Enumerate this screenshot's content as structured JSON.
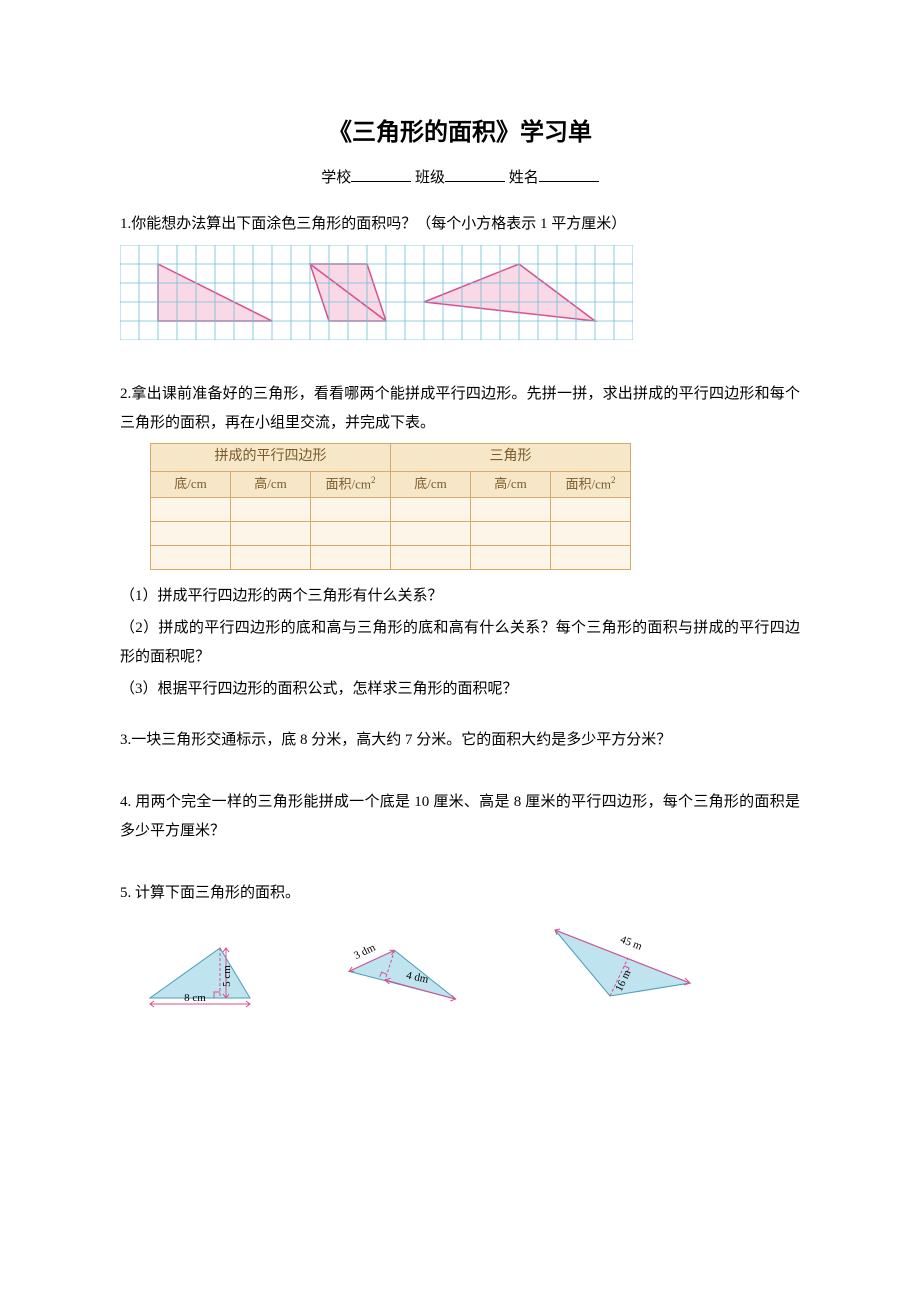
{
  "title": "《三角形的面积》学习单",
  "subtitle": {
    "school_label": "学校",
    "class_label": "班级",
    "name_label": "姓名"
  },
  "q1": {
    "text": "1.你能想办法算出下面涂色三角形的面积吗？（每个小方格表示 1 平方厘米）",
    "grid": {
      "cols": 27,
      "rows": 5,
      "cell": 19,
      "grid_color": "#6bbfd4",
      "bg": "#ffffff",
      "triangles": [
        {
          "points": [
            [
              2,
              1
            ],
            [
              8,
              4
            ],
            [
              2,
              4
            ]
          ],
          "fill": "#f9d9e6",
          "stroke": "#d94f8f"
        },
        {
          "points": [
            [
              10,
              1
            ],
            [
              13,
              1
            ],
            [
              14,
              4
            ],
            [
              11,
              4
            ]
          ],
          "fill": "#f9d9e6",
          "stroke": "#d94f8f",
          "closed": true,
          "is_quad": false,
          "tri_points": [
            [
              10,
              1
            ],
            [
              13,
              1
            ],
            [
              11,
              4
            ]
          ]
        },
        {
          "points": [
            [
              16,
              3
            ],
            [
              21,
              1
            ],
            [
              25,
              4
            ]
          ],
          "fill": "#f9d9e6",
          "stroke": "#d94f8f"
        }
      ],
      "shapes": [
        {
          "points": [
            [
              2,
              1
            ],
            [
              8,
              4
            ],
            [
              2,
              4
            ]
          ],
          "fill": "#f9d9e6",
          "stroke": "#d94f8f"
        },
        {
          "points": [
            [
              10,
              1
            ],
            [
              13,
              1
            ],
            [
              11,
              4
            ]
          ],
          "fill": "none",
          "stroke": "#d94f8f"
        },
        {
          "points": [
            [
              10,
              1
            ],
            [
              13,
              1
            ],
            [
              14,
              4
            ],
            [
              11,
              4
            ]
          ],
          "fill": "#f9d9e6",
          "stroke": "#d94f8f",
          "inner_tri": [
            [
              10,
              1
            ],
            [
              13,
              1
            ],
            [
              11,
              4
            ]
          ]
        },
        {
          "points": [
            [
              16,
              3
            ],
            [
              21,
              1
            ],
            [
              25,
              4
            ]
          ],
          "fill": "#f9d9e6",
          "stroke": "#d94f8f"
        }
      ]
    }
  },
  "q2": {
    "text": "2.拿出课前准备好的三角形，看看哪两个能拼成平行四边形。先拼一拼，求出拼成的平行四边形和每个三角形的面积，再在小组里交流，并完成下表。",
    "table": {
      "group1": "拼成的平行四边形",
      "group2": "三角形",
      "cols": [
        "底/cm",
        "高/cm",
        "面积/cm²",
        "底/cm",
        "高/cm",
        "面积/cm²"
      ],
      "blank_rows": 3,
      "header_bg": "#f5e7c8",
      "cell_bg": "#fdf6e8",
      "border_color": "#d9a96a",
      "text_color": "#7a5a2a"
    },
    "subs": [
      "（1）拼成平行四边形的两个三角形有什么关系？",
      "（2）拼成的平行四边形的底和高与三角形的底和高有什么关系？每个三角形的面积与拼成的平行四边形的面积呢？",
      "（3）根据平行四边形的面积公式，怎样求三角形的面积呢？"
    ]
  },
  "q3": "3.一块三角形交通标示，底 8 分米，高大约 7 分米。它的面积大约是多少平方分米？",
  "q4": "4. 用两个完全一样的三角形能拼成一个底是 10 厘米、高是 8 厘米的平行四边形，每个三角形的面积是多少平方厘米？",
  "q5": {
    "text": "5. 计算下面三角形的面积。",
    "triangles": [
      {
        "type": "obtuse-left",
        "base": "8 cm",
        "height": "5 cm",
        "fill": "#bfe4ef",
        "stroke": "#4a9db5",
        "label_color": "#d94f8f"
      },
      {
        "type": "obtuse-rotated",
        "base": "4 dm",
        "height": "3 dm",
        "fill": "#bfe4ef",
        "stroke": "#4a9db5",
        "label_color": "#d94f8f"
      },
      {
        "type": "obtuse-right",
        "base": "45 m",
        "height": "16 m",
        "fill": "#bfe4ef",
        "stroke": "#4a9db5",
        "label_color": "#d94f8f"
      }
    ]
  }
}
